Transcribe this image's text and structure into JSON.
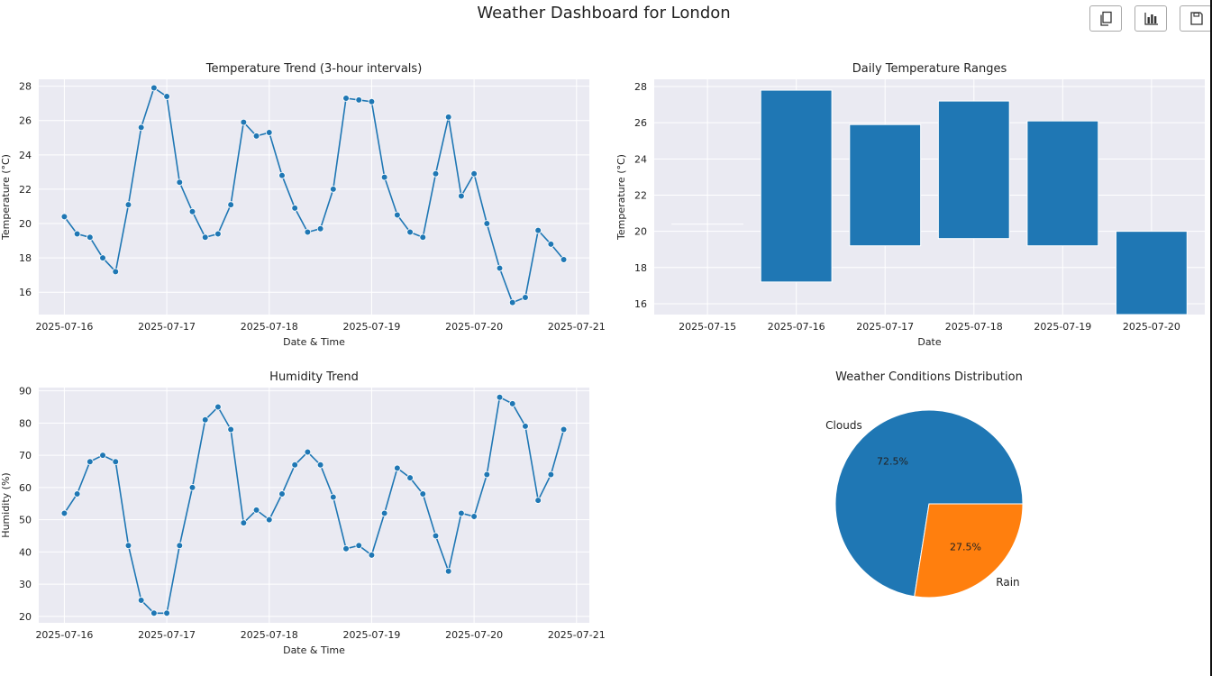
{
  "page": {
    "title": "Weather Dashboard for London",
    "toolbar": [
      {
        "icon": "copy-icon"
      },
      {
        "icon": "bar-chart-icon"
      },
      {
        "icon": "save-icon"
      }
    ]
  },
  "colors": {
    "panel_bg": "#eaeaf2",
    "grid": "#ffffff",
    "line": "#1f77b4",
    "bar": "#1f77b4",
    "pie": [
      "#1f77b4",
      "#ff7f0e"
    ],
    "text": "#222222"
  },
  "chart_data": [
    {
      "id": "temperature",
      "type": "line",
      "title": "Temperature Trend (3-hour intervals)",
      "xlabel": "Date & Time",
      "ylabel": "Temperature (°C)",
      "x_start": "2025-07-16 00:00",
      "x_step_hours": 3,
      "xlim": [
        "2025-07-15 18:00",
        "2025-07-21 03:00"
      ],
      "xticks": [
        "2025-07-16",
        "2025-07-17",
        "2025-07-18",
        "2025-07-19",
        "2025-07-20",
        "2025-07-21"
      ],
      "ylim": [
        14.7,
        28.4
      ],
      "yticks": [
        16,
        18,
        20,
        22,
        24,
        26,
        28
      ],
      "marker": "circle",
      "grid": true,
      "values": [
        20.4,
        19.4,
        19.2,
        18.0,
        17.2,
        21.1,
        25.6,
        27.9,
        27.4,
        22.4,
        20.7,
        19.2,
        19.4,
        21.1,
        25.9,
        25.1,
        25.3,
        22.8,
        20.9,
        19.5,
        19.7,
        22.0,
        27.3,
        27.2,
        27.1,
        22.7,
        20.5,
        19.5,
        19.2,
        22.9,
        26.2,
        21.6,
        22.9,
        20.0,
        17.4,
        15.4,
        15.7,
        19.6,
        18.8,
        17.9
      ]
    },
    {
      "id": "humidity",
      "type": "line",
      "title": "Humidity Trend",
      "xlabel": "Date & Time",
      "ylabel": "Humidity (%)",
      "x_start": "2025-07-16 00:00",
      "x_step_hours": 3,
      "xlim": [
        "2025-07-15 18:00",
        "2025-07-21 03:00"
      ],
      "xticks": [
        "2025-07-16",
        "2025-07-17",
        "2025-07-18",
        "2025-07-19",
        "2025-07-20",
        "2025-07-21"
      ],
      "ylim": [
        18,
        91
      ],
      "yticks": [
        20,
        30,
        40,
        50,
        60,
        70,
        80,
        90
      ],
      "marker": "circle",
      "grid": true,
      "values": [
        52,
        58,
        68,
        70,
        68,
        42,
        25,
        21,
        21,
        42,
        60,
        81,
        85,
        78,
        49,
        53,
        50,
        58,
        67,
        71,
        67,
        57,
        41,
        42,
        39,
        52,
        66,
        63,
        58,
        45,
        34,
        52,
        51,
        64,
        88,
        86,
        79,
        56,
        64,
        78
      ]
    },
    {
      "id": "daily-ranges",
      "type": "bar",
      "title": "Daily Temperature Ranges",
      "xlabel": "Date",
      "ylabel": "Temperature (°C)",
      "categories": [
        "2025-07-15",
        "2025-07-16",
        "2025-07-17",
        "2025-07-18",
        "2025-07-19",
        "2025-07-20"
      ],
      "bottoms": [
        20.4,
        17.2,
        19.2,
        19.6,
        19.2,
        15.4
      ],
      "tops": [
        20.4,
        27.8,
        25.9,
        27.2,
        26.1,
        20.0
      ],
      "ylim": [
        15.4,
        28.4
      ],
      "yticks": [
        16,
        18,
        20,
        22,
        24,
        26,
        28
      ],
      "grid": true
    },
    {
      "id": "conditions",
      "type": "pie",
      "title": "Weather Conditions Distribution",
      "labels": [
        "Clouds",
        "Rain"
      ],
      "values": [
        72.5,
        27.5
      ],
      "pct_labels": [
        "72.5%",
        "27.5%"
      ]
    }
  ]
}
